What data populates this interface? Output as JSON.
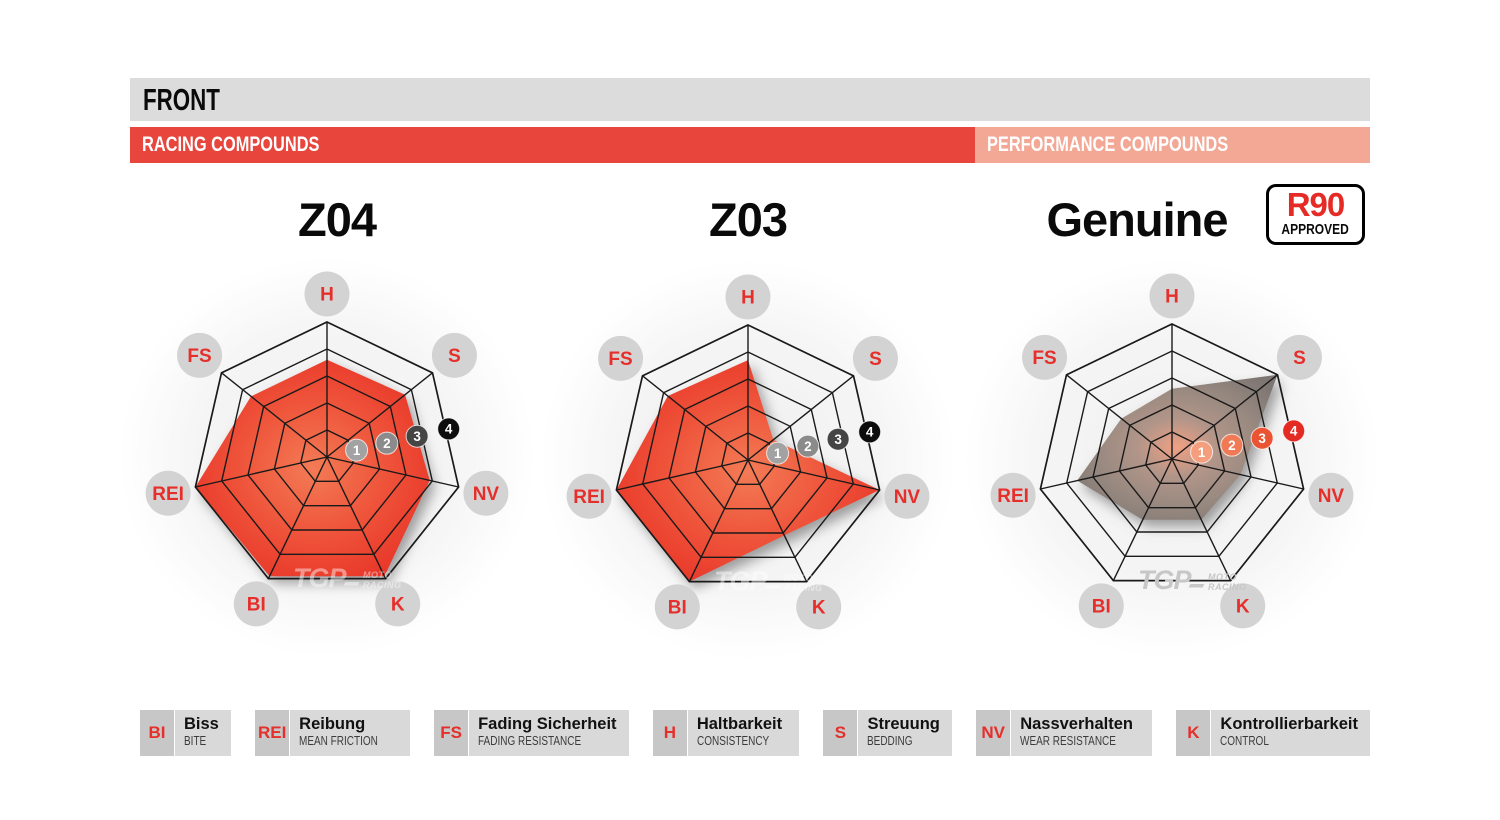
{
  "header": {
    "title": "FRONT",
    "racing_label": "RACING COMPOUNDS",
    "performance_label": "PERFORMANCE COMPOUNDS"
  },
  "charts": [
    {
      "title": "Z04",
      "palette": "red",
      "badge_palette": "gray",
      "watermark_light": true
    },
    {
      "title": "Z03",
      "palette": "red",
      "badge_palette": "gray",
      "watermark_light": true
    },
    {
      "title": "Genuine",
      "palette": "gray",
      "badge_palette": "red",
      "watermark_light": false
    }
  ],
  "genuine_badge": {
    "line1": "R90",
    "line2": "APPROVED"
  },
  "chart_data": {
    "type": "radar",
    "axes": [
      "H",
      "S",
      "NV",
      "K",
      "BI",
      "REI",
      "FS"
    ],
    "scale": {
      "min": 0,
      "max": 5,
      "rings": 5,
      "ring_labels": [
        "1",
        "2",
        "3",
        "4"
      ]
    },
    "series": [
      {
        "name": "Z04",
        "values": [
          3.6,
          3.7,
          3.9,
          4.9,
          4.9,
          5.0,
          3.6
        ]
      },
      {
        "name": "Z03",
        "values": [
          3.7,
          1.2,
          5.0,
          3.1,
          5.0,
          5.0,
          3.8
        ]
      },
      {
        "name": "Genuine",
        "values": [
          2.6,
          5.0,
          2.6,
          2.5,
          2.5,
          3.6,
          2.4
        ]
      }
    ],
    "legend_position": "bottom",
    "grid": true
  },
  "watermark": {
    "tgp": "TGP",
    "moto": "MOTO",
    "racing": "RACING"
  },
  "legend": [
    {
      "abbr": "BI",
      "de": "Biss",
      "en": "BITE"
    },
    {
      "abbr": "REI",
      "de": "Reibung",
      "en": "MEAN FRICTION"
    },
    {
      "abbr": "FS",
      "de": "Fading Sicherheit",
      "en": "FADING RESISTANCE"
    },
    {
      "abbr": "H",
      "de": "Haltbarkeit",
      "en": "CONSISTENCY"
    },
    {
      "abbr": "S",
      "de": "Streuung",
      "en": "BEDDING"
    },
    {
      "abbr": "NV",
      "de": "Nassverhalten",
      "en": "WEAR RESISTANCE"
    },
    {
      "abbr": "K",
      "de": "Kontrollierbarkeit",
      "en": "CONTROL"
    }
  ],
  "colors": {
    "front_bar_bg": "#dcdcdc",
    "racing_bar": "#e8453c",
    "performance_bar": "#f3a795",
    "r90_red": "#e62b26",
    "label_circle": "#d3d3d3",
    "label_text": "#e62e2b",
    "web_line": "#1a1a1a",
    "red_fill_center": "#f37b55",
    "red_fill_mid": "#ee5038",
    "red_fill_edge": "#e73126",
    "gray_fill_center": "#f0a183",
    "gray_fill_mid": "#b29589",
    "gray_fill_edge": "#7e7673",
    "badge_gray": [
      "#a2a2a2",
      "#8b8b8b",
      "#454545",
      "#0d0d0d"
    ],
    "badge_red": [
      "#f59e7e",
      "#f07a55",
      "#ea5433",
      "#e32b24"
    ],
    "legend_abbr_bg": "#c7c7c7",
    "legend_text_bg": "#d9d9d9"
  }
}
